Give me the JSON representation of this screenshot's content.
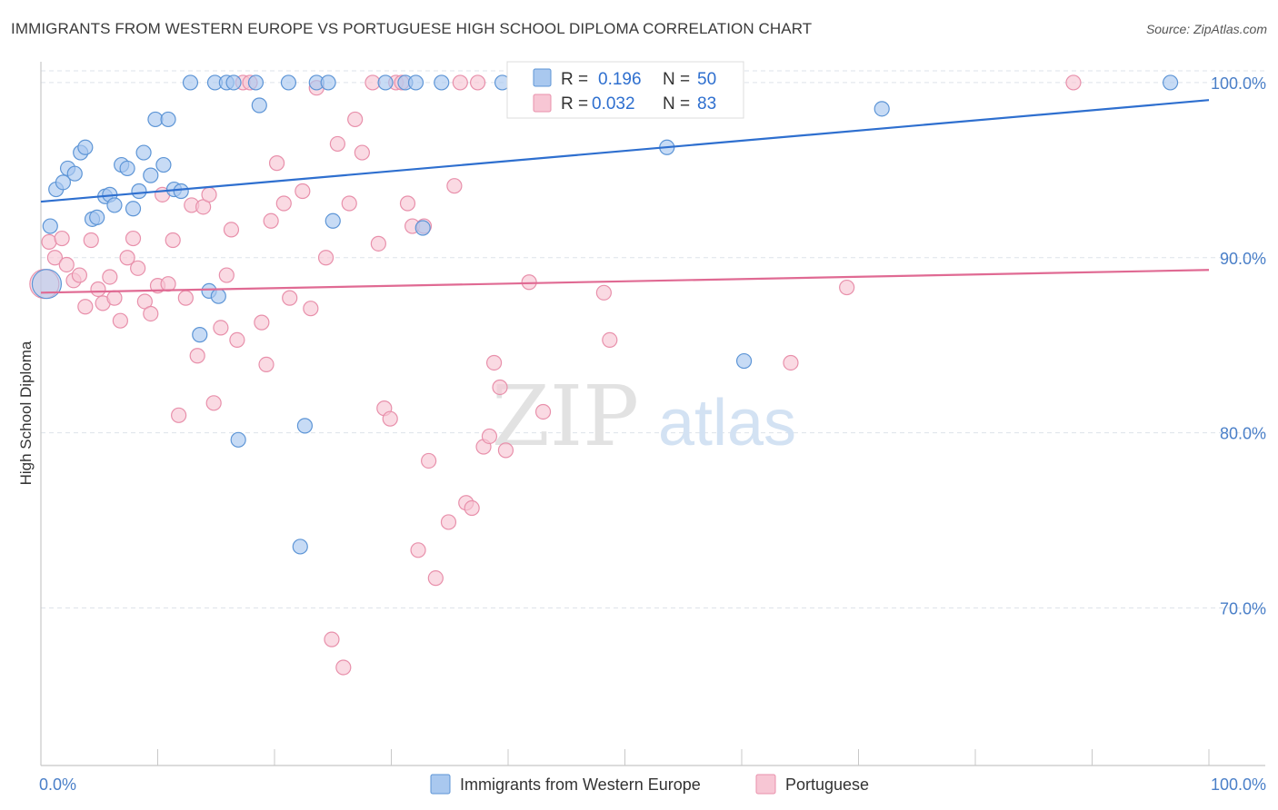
{
  "header": {
    "title": "IMMIGRANTS FROM WESTERN EUROPE VS PORTUGUESE HIGH SCHOOL DIPLOMA CORRELATION CHART",
    "source": "Source: ZipAtlas.com"
  },
  "watermark": {
    "zip": "ZIP",
    "atlas": "atlas"
  },
  "legend_box": {
    "r_label": "R =",
    "n_label": "N =",
    "rows": [
      {
        "series": "Immigrants from Western Europe",
        "r": "0.196",
        "n": "50",
        "color": "#a9c8ef"
      },
      {
        "series": "Portuguese",
        "r": "0.032",
        "n": "83",
        "color": "#f5b8cb"
      }
    ]
  },
  "bottom_legend": [
    "Immigrants from Western Europe",
    "Portuguese"
  ],
  "colors": {
    "blue_point": "#a9c8ef",
    "blue_stroke": "#5d95d6",
    "blue_line": "#2e6fcf",
    "pink_point": "#f7c6d4",
    "pink_stroke": "#e890ab",
    "pink_line": "#e06a93",
    "axis_label": "#4a7fc8",
    "grid": "#dde3ea",
    "value_text": "#2e6fcf"
  },
  "chart_data": {
    "type": "scatter",
    "title": "IMMIGRANTS FROM WESTERN EUROPE VS PORTUGUESE HIGH SCHOOL DIPLOMA CORRELATION CHART",
    "xlabel": "",
    "ylabel": "High School Diploma",
    "xlim": [
      0,
      100
    ],
    "ylim": [
      61,
      101.5
    ],
    "x_tick_labels": [
      "0.0%",
      "100.0%"
    ],
    "y_ticks": [
      100,
      90,
      80,
      70
    ],
    "y_tick_labels": [
      "100.0%",
      "90.0%",
      "80.0%",
      "70.0%"
    ],
    "grid": true,
    "legend": "bottom-center",
    "series": [
      {
        "name": "Immigrants from Western Europe",
        "trend": {
          "x": [
            0,
            100
          ],
          "y": [
            93.2,
            99.0
          ]
        },
        "points": [
          {
            "x": 0.5,
            "y": 88.5,
            "big": true
          },
          {
            "x": 0.8,
            "y": 91.8
          },
          {
            "x": 1.3,
            "y": 93.9
          },
          {
            "x": 1.9,
            "y": 94.3
          },
          {
            "x": 2.3,
            "y": 95.1
          },
          {
            "x": 2.9,
            "y": 94.8
          },
          {
            "x": 3.4,
            "y": 96.0
          },
          {
            "x": 3.8,
            "y": 96.3
          },
          {
            "x": 4.4,
            "y": 92.2
          },
          {
            "x": 4.8,
            "y": 92.3
          },
          {
            "x": 5.5,
            "y": 93.5
          },
          {
            "x": 5.9,
            "y": 93.6
          },
          {
            "x": 6.3,
            "y": 93.0
          },
          {
            "x": 6.9,
            "y": 95.3
          },
          {
            "x": 7.4,
            "y": 95.1
          },
          {
            "x": 7.9,
            "y": 92.8
          },
          {
            "x": 8.4,
            "y": 93.8
          },
          {
            "x": 8.8,
            "y": 96.0
          },
          {
            "x": 9.4,
            "y": 94.7
          },
          {
            "x": 9.8,
            "y": 97.9
          },
          {
            "x": 10.5,
            "y": 95.3
          },
          {
            "x": 10.9,
            "y": 97.9
          },
          {
            "x": 11.4,
            "y": 93.9
          },
          {
            "x": 12.0,
            "y": 93.8
          },
          {
            "x": 12.8,
            "y": 100
          },
          {
            "x": 13.6,
            "y": 85.6
          },
          {
            "x": 14.4,
            "y": 88.1
          },
          {
            "x": 14.9,
            "y": 100
          },
          {
            "x": 15.2,
            "y": 87.8
          },
          {
            "x": 15.9,
            "y": 100
          },
          {
            "x": 16.5,
            "y": 100
          },
          {
            "x": 16.9,
            "y": 79.6
          },
          {
            "x": 18.4,
            "y": 100
          },
          {
            "x": 18.7,
            "y": 98.7
          },
          {
            "x": 21.2,
            "y": 100
          },
          {
            "x": 22.2,
            "y": 73.5
          },
          {
            "x": 22.6,
            "y": 80.4
          },
          {
            "x": 23.6,
            "y": 100
          },
          {
            "x": 24.6,
            "y": 100
          },
          {
            "x": 25.0,
            "y": 92.1
          },
          {
            "x": 29.5,
            "y": 100
          },
          {
            "x": 31.2,
            "y": 100
          },
          {
            "x": 32.1,
            "y": 100
          },
          {
            "x": 32.7,
            "y": 91.7
          },
          {
            "x": 34.3,
            "y": 100
          },
          {
            "x": 39.5,
            "y": 100
          },
          {
            "x": 53.6,
            "y": 96.3
          },
          {
            "x": 60.2,
            "y": 84.1
          },
          {
            "x": 72.0,
            "y": 98.5
          },
          {
            "x": 96.7,
            "y": 100
          }
        ]
      },
      {
        "name": "Portuguese",
        "trend": {
          "x": [
            0,
            100
          ],
          "y": [
            88.0,
            89.3
          ]
        },
        "points": [
          {
            "x": 0.3,
            "y": 88.5,
            "big": true
          },
          {
            "x": 0.7,
            "y": 90.9
          },
          {
            "x": 1.2,
            "y": 90.0
          },
          {
            "x": 1.8,
            "y": 91.1
          },
          {
            "x": 2.2,
            "y": 89.6
          },
          {
            "x": 2.8,
            "y": 88.7
          },
          {
            "x": 3.3,
            "y": 89.0
          },
          {
            "x": 3.8,
            "y": 87.2
          },
          {
            "x": 4.3,
            "y": 91.0
          },
          {
            "x": 4.9,
            "y": 88.2
          },
          {
            "x": 5.3,
            "y": 87.4
          },
          {
            "x": 5.9,
            "y": 88.9
          },
          {
            "x": 6.3,
            "y": 87.7
          },
          {
            "x": 6.8,
            "y": 86.4
          },
          {
            "x": 7.4,
            "y": 90.0
          },
          {
            "x": 7.9,
            "y": 91.1
          },
          {
            "x": 8.3,
            "y": 89.4
          },
          {
            "x": 8.9,
            "y": 87.5
          },
          {
            "x": 9.4,
            "y": 86.8
          },
          {
            "x": 10.0,
            "y": 88.4
          },
          {
            "x": 10.4,
            "y": 93.6
          },
          {
            "x": 10.9,
            "y": 88.5
          },
          {
            "x": 11.3,
            "y": 91.0
          },
          {
            "x": 11.8,
            "y": 81.0
          },
          {
            "x": 12.4,
            "y": 87.7
          },
          {
            "x": 12.9,
            "y": 93.0
          },
          {
            "x": 13.4,
            "y": 84.4
          },
          {
            "x": 13.9,
            "y": 92.9
          },
          {
            "x": 14.4,
            "y": 93.6
          },
          {
            "x": 14.8,
            "y": 81.7
          },
          {
            "x": 15.4,
            "y": 86.0
          },
          {
            "x": 15.9,
            "y": 89.0
          },
          {
            "x": 16.3,
            "y": 91.6
          },
          {
            "x": 16.8,
            "y": 85.3
          },
          {
            "x": 17.3,
            "y": 100
          },
          {
            "x": 17.9,
            "y": 100
          },
          {
            "x": 18.9,
            "y": 86.3
          },
          {
            "x": 19.3,
            "y": 83.9
          },
          {
            "x": 19.7,
            "y": 92.1
          },
          {
            "x": 20.2,
            "y": 95.4
          },
          {
            "x": 20.8,
            "y": 93.1
          },
          {
            "x": 21.3,
            "y": 87.7
          },
          {
            "x": 22.4,
            "y": 93.8
          },
          {
            "x": 23.1,
            "y": 87.1
          },
          {
            "x": 23.6,
            "y": 99.7
          },
          {
            "x": 24.4,
            "y": 90.0
          },
          {
            "x": 24.9,
            "y": 68.2
          },
          {
            "x": 25.4,
            "y": 96.5
          },
          {
            "x": 25.9,
            "y": 66.6
          },
          {
            "x": 26.4,
            "y": 93.1
          },
          {
            "x": 26.9,
            "y": 97.9
          },
          {
            "x": 27.5,
            "y": 96.0
          },
          {
            "x": 28.4,
            "y": 100
          },
          {
            "x": 28.9,
            "y": 90.8
          },
          {
            "x": 29.4,
            "y": 81.4
          },
          {
            "x": 29.9,
            "y": 80.8
          },
          {
            "x": 30.4,
            "y": 100
          },
          {
            "x": 30.9,
            "y": 100
          },
          {
            "x": 31.4,
            "y": 93.1
          },
          {
            "x": 31.8,
            "y": 91.8
          },
          {
            "x": 32.3,
            "y": 73.3
          },
          {
            "x": 32.8,
            "y": 91.8
          },
          {
            "x": 33.2,
            "y": 78.4
          },
          {
            "x": 33.8,
            "y": 71.7
          },
          {
            "x": 34.9,
            "y": 74.9
          },
          {
            "x": 35.4,
            "y": 94.1
          },
          {
            "x": 35.9,
            "y": 100
          },
          {
            "x": 36.4,
            "y": 76.0
          },
          {
            "x": 36.9,
            "y": 75.7
          },
          {
            "x": 37.4,
            "y": 100
          },
          {
            "x": 37.9,
            "y": 79.2
          },
          {
            "x": 38.4,
            "y": 79.8
          },
          {
            "x": 38.8,
            "y": 84.0
          },
          {
            "x": 39.3,
            "y": 82.6
          },
          {
            "x": 39.8,
            "y": 79.0
          },
          {
            "x": 41.0,
            "y": 100
          },
          {
            "x": 41.8,
            "y": 88.6
          },
          {
            "x": 43.0,
            "y": 81.2
          },
          {
            "x": 48.2,
            "y": 88.0
          },
          {
            "x": 48.7,
            "y": 85.3
          },
          {
            "x": 64.2,
            "y": 84.0
          },
          {
            "x": 69.0,
            "y": 88.3
          },
          {
            "x": 88.4,
            "y": 100
          }
        ]
      }
    ]
  }
}
